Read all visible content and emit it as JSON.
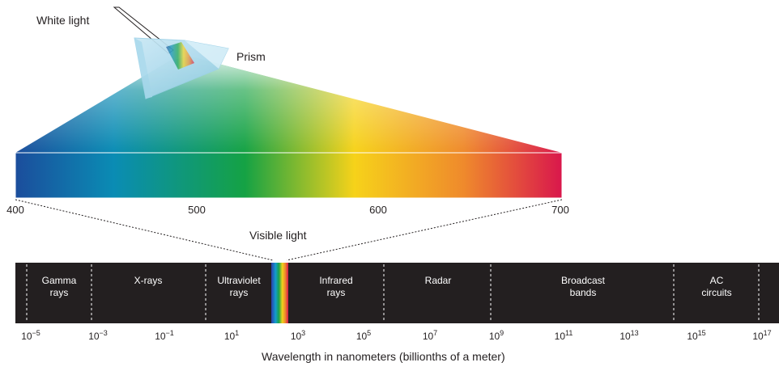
{
  "labels": {
    "white_light": "White light",
    "prism": "Prism",
    "visible_light": "Visible light",
    "axis_title": "Wavelength in nanometers (billionths of a meter)"
  },
  "visible_scale": [
    "400",
    "500",
    "600",
    "700"
  ],
  "bands": [
    {
      "line1": "Gamma",
      "line2": "rays"
    },
    {
      "line1": "X-rays",
      "line2": ""
    },
    {
      "line1": "Ultraviolet",
      "line2": "rays"
    },
    {
      "line1": "Infrared",
      "line2": "rays"
    },
    {
      "line1": "Radar",
      "line2": ""
    },
    {
      "line1": "Broadcast",
      "line2": "bands"
    },
    {
      "line1": "AC",
      "line2": "circuits"
    }
  ],
  "ticks": [
    {
      "base": "10",
      "exp": "−5"
    },
    {
      "base": "10",
      "exp": "−3"
    },
    {
      "base": "10",
      "exp": "−1"
    },
    {
      "base": "10",
      "exp": "1"
    },
    {
      "base": "10",
      "exp": "3"
    },
    {
      "base": "10",
      "exp": "5"
    },
    {
      "base": "10",
      "exp": "7"
    },
    {
      "base": "10",
      "exp": "9"
    },
    {
      "base": "10",
      "exp": "11"
    },
    {
      "base": "10",
      "exp": "13"
    },
    {
      "base": "10",
      "exp": "15"
    },
    {
      "base": "10",
      "exp": "17"
    }
  ],
  "colors": {
    "violet": "#1d4f9e",
    "blue": "#0e86b8",
    "green": "#16a046",
    "yellow": "#f7d11a",
    "orange": "#ef8a2c",
    "red": "#d9184a",
    "bar": "#231f20"
  }
}
